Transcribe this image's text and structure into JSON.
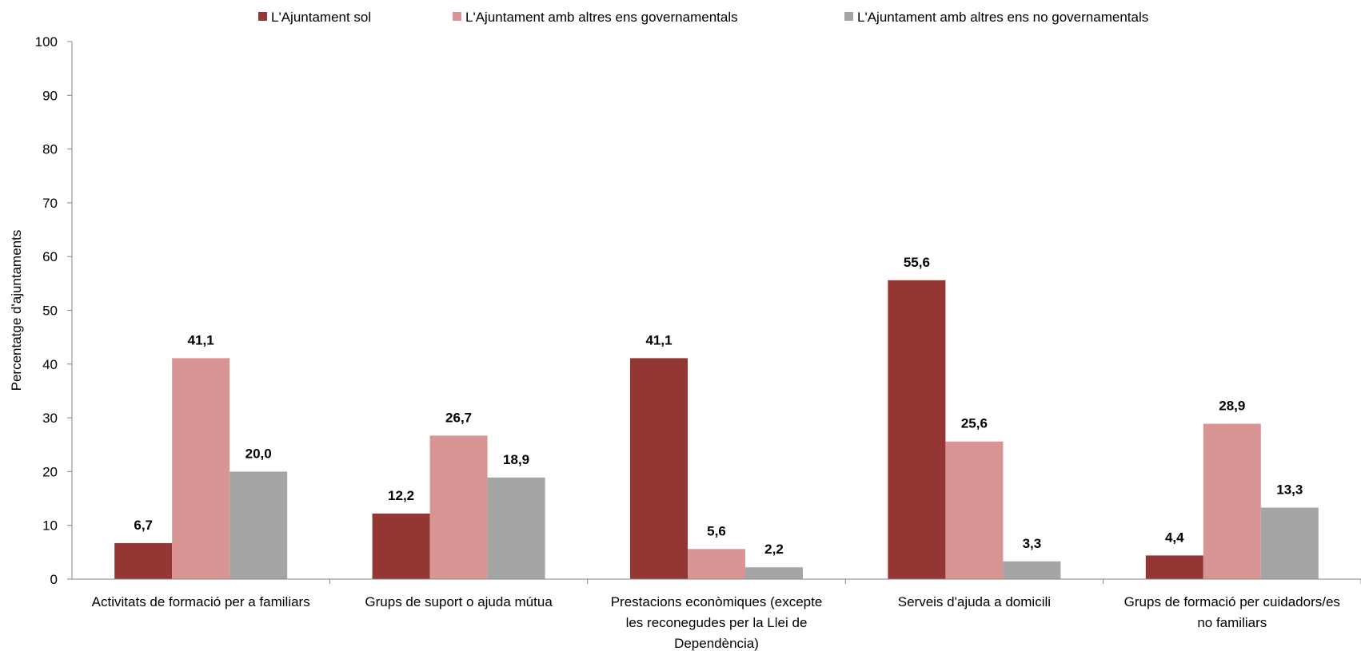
{
  "chart_data": {
    "type": "bar",
    "ylabel": "Percentatge d'ajuntaments",
    "ylim": [
      0,
      100
    ],
    "yticks": [
      0,
      10,
      20,
      30,
      40,
      50,
      60,
      70,
      80,
      90,
      100
    ],
    "categories": [
      [
        "Activitats de formació per a familiars"
      ],
      [
        "Grups de suport o ajuda mútua"
      ],
      [
        "Prestacions econòmiques (excepte",
        "les reconegudes per la Llei de",
        "Dependència)"
      ],
      [
        "Serveis d'ajuda a domicili"
      ],
      [
        "Grups de formació per cuidadors/es",
        "no familiars"
      ]
    ],
    "series": [
      {
        "name": "L'Ajuntament sol",
        "color": "#943634",
        "values": [
          6.7,
          12.2,
          41.1,
          55.6,
          4.4
        ],
        "labels": [
          "6,7",
          "12,2",
          "41,1",
          "55,6",
          "4,4"
        ]
      },
      {
        "name": "L'Ajuntament amb altres ens governamentals",
        "color": "#d99594",
        "values": [
          41.1,
          26.7,
          5.6,
          25.6,
          28.9
        ],
        "labels": [
          "41,1",
          "26,7",
          "5,6",
          "25,6",
          "28,9"
        ]
      },
      {
        "name": "L'Ajuntament amb altres ens no governamentals",
        "color": "#a5a5a5",
        "values": [
          20.0,
          18.9,
          2.2,
          3.3,
          13.3
        ],
        "labels": [
          "20,0",
          "18,9",
          "2,2",
          "3,3",
          "13,3"
        ]
      }
    ],
    "grid": false,
    "legend": "top"
  }
}
